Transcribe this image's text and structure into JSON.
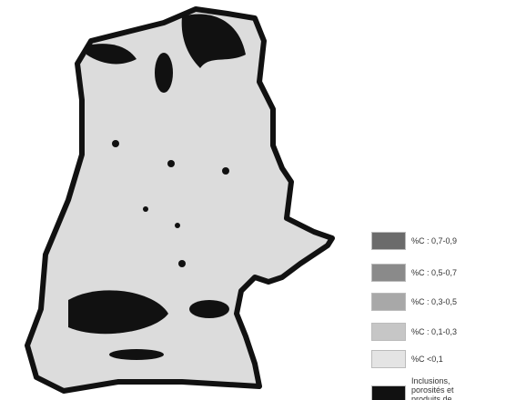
{
  "legend": {
    "items": [
      {
        "label": "%C : 0,7-0,9",
        "color": "#6b6b6b"
      },
      {
        "label": "%C : 0,5-0,7",
        "color": "#8a8a8a"
      },
      {
        "label": "%C : 0,3-0,5",
        "color": "#a8a8a8"
      },
      {
        "label": "%C : 0,1-0,3",
        "color": "#c6c6c6"
      },
      {
        "label": "%C <0,1",
        "color": "#e4e4e4"
      },
      {
        "label": "Inclusions, porosités et produits de corrosion",
        "color": "#111111"
      }
    ]
  }
}
